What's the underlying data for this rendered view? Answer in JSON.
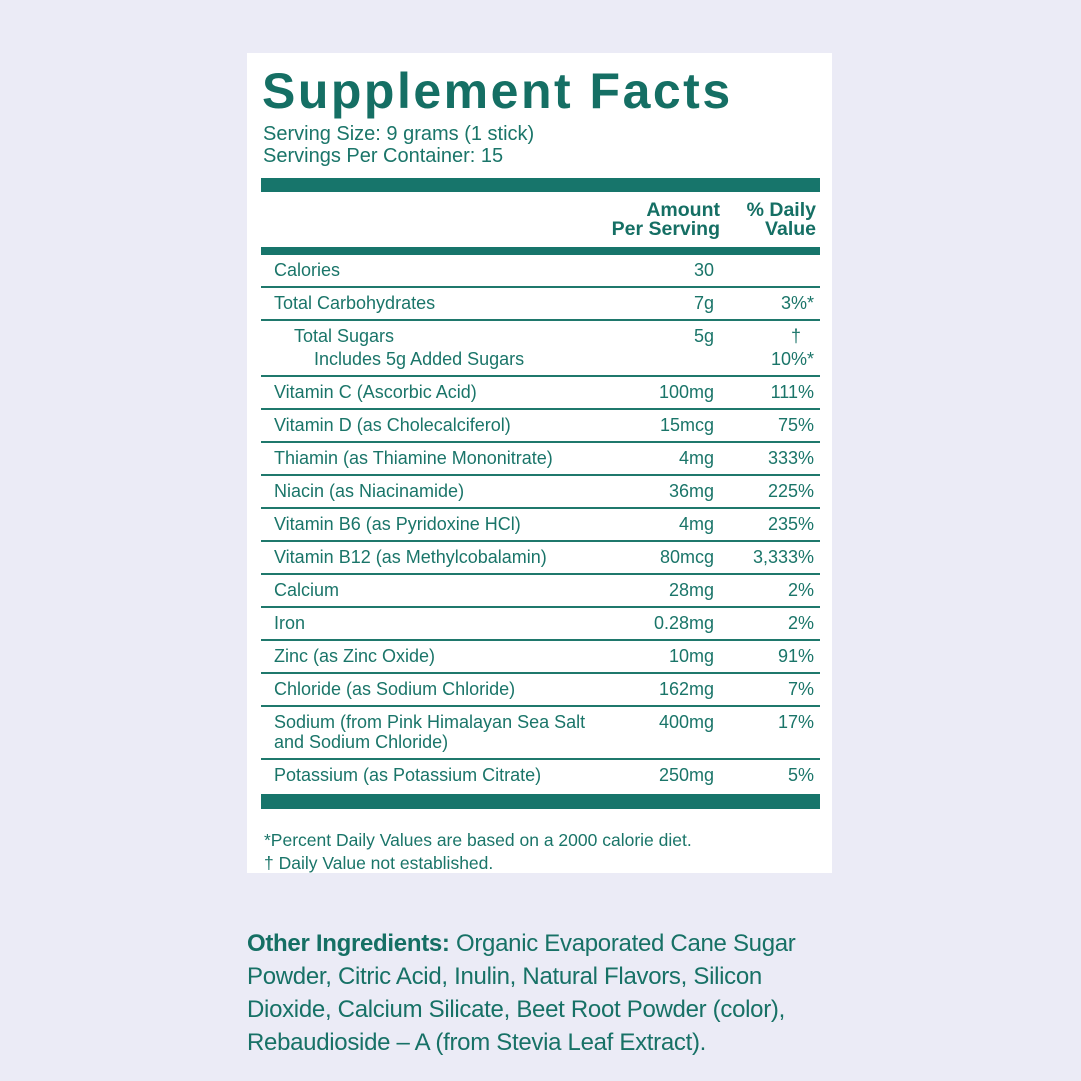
{
  "colors": {
    "background": "#EBEBF6",
    "card": "#FFFFFF",
    "teal_text": "#156F64",
    "teal_bar": "#17756B"
  },
  "label": {
    "title": "Supplement Facts",
    "serving_size": "Serving Size: 9 grams (1 stick)",
    "servings_per_container": "Servings Per Container: 15",
    "table": {
      "amount_header": "Amount\nPer Serving",
      "daily_value_header": "% Daily\nValue",
      "rows": [
        {
          "lines": [
            {
              "label": "Calories",
              "amount": "30",
              "dv": "",
              "indent": 0
            }
          ]
        },
        {
          "lines": [
            {
              "label": "Total Carbohydrates",
              "amount": "7g",
              "dv": "3%*",
              "indent": 0
            }
          ]
        },
        {
          "lines": [
            {
              "label": "Total Sugars",
              "amount": "5g",
              "dv": "†",
              "indent": 1
            },
            {
              "label": "Includes 5g Added Sugars",
              "amount": "",
              "dv": "10%*",
              "indent": 2
            }
          ]
        },
        {
          "lines": [
            {
              "label": "Vitamin C (Ascorbic Acid)",
              "amount": "100mg",
              "dv": "111%",
              "indent": 0
            }
          ]
        },
        {
          "lines": [
            {
              "label": "Vitamin D (as Cholecalciferol)",
              "amount": "15mcg",
              "dv": "75%",
              "indent": 0
            }
          ]
        },
        {
          "lines": [
            {
              "label": "Thiamin (as Thiamine Mononitrate)",
              "amount": "4mg",
              "dv": "333%",
              "indent": 0
            }
          ]
        },
        {
          "lines": [
            {
              "label": "Niacin (as Niacinamide)",
              "amount": "36mg",
              "dv": "225%",
              "indent": 0
            }
          ]
        },
        {
          "lines": [
            {
              "label": "Vitamin B6 (as Pyridoxine HCl)",
              "amount": "4mg",
              "dv": "235%",
              "indent": 0
            }
          ]
        },
        {
          "lines": [
            {
              "label": "Vitamin B12 (as Methylcobalamin)",
              "amount": "80mcg",
              "dv": "3,333%",
              "indent": 0
            }
          ]
        },
        {
          "lines": [
            {
              "label": "Calcium",
              "amount": "28mg",
              "dv": "2%",
              "indent": 0
            }
          ]
        },
        {
          "lines": [
            {
              "label": "Iron",
              "amount": "0.28mg",
              "dv": "2%",
              "indent": 0
            }
          ]
        },
        {
          "lines": [
            {
              "label": "Zinc (as Zinc Oxide)",
              "amount": "10mg",
              "dv": "91%",
              "indent": 0
            }
          ]
        },
        {
          "lines": [
            {
              "label": "Chloride (as Sodium Chloride)",
              "amount": "162mg",
              "dv": "7%",
              "indent": 0
            }
          ]
        },
        {
          "lines": [
            {
              "label": "Sodium (from Pink Himalayan Sea Salt and Sodium Chloride)",
              "amount": "400mg",
              "dv": "17%",
              "indent": 0
            }
          ]
        },
        {
          "lines": [
            {
              "label": "Potassium (as Potassium Citrate)",
              "amount": "250mg",
              "dv": "5%",
              "indent": 0
            }
          ]
        }
      ]
    },
    "footnotes": [
      "*Percent Daily Values are based on a 2000 calorie diet.",
      "† Daily Value not established."
    ],
    "other_ingredients": {
      "heading": "Other Ingredients:",
      "text": " Organic Evaporated Cane Sugar Powder, Citric Acid, Inulin, Natural Flavors, Silicon Dioxide, Calcium Silicate, Beet Root Powder (color), Rebaudioside – A (from Stevia Leaf Extract)."
    }
  }
}
